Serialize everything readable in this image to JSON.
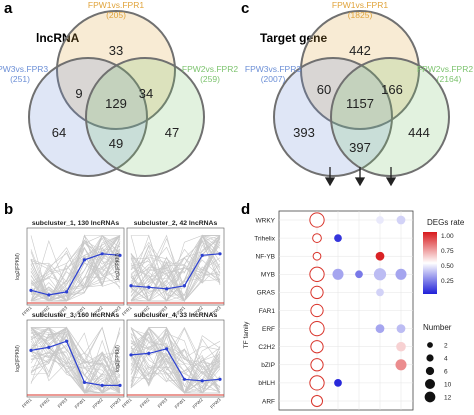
{
  "panels": {
    "a": "a",
    "b": "b",
    "c": "c",
    "d": "d"
  },
  "colors": {
    "yellow": "#E0A33A",
    "blue": "#6C8FD6",
    "green": "#7CC36E",
    "red": "#d9342b",
    "blue_line": "#2b3fd1"
  },
  "venn_a": {
    "title": "lncRNA",
    "sets": [
      {
        "name": "FPW1vs.FPR1",
        "count": "(205)"
      },
      {
        "name": "FPW3vs.FPR3",
        "count": "(251)"
      },
      {
        "name": "FPW2vs.FPR2",
        "count": "(259)"
      }
    ],
    "regions": {
      "top": "33",
      "left": "64",
      "right": "47",
      "top_left": "9",
      "top_right": "34",
      "bottom": "49",
      "center": "129"
    }
  },
  "venn_c": {
    "title": "Target gene",
    "sets": [
      {
        "name": "FPW1vs.FPR1",
        "count": "(1825)"
      },
      {
        "name": "FPW3vs.FPR3",
        "count": "(2007)"
      },
      {
        "name": "FPW2vs.FPR2",
        "count": "(2164)"
      }
    ],
    "regions": {
      "top": "442",
      "left": "393",
      "right": "444",
      "top_left": "60",
      "top_right": "166",
      "bottom": "397",
      "center": "1157"
    }
  },
  "subclusters": [
    {
      "title": "subcluster_1, 130 lncRNAs",
      "ylabel": "log2(FPKM)",
      "values": [
        0.35,
        0.2,
        0.3,
        1.35,
        1.55,
        1.5
      ]
    },
    {
      "title": "subcluster_2, 42 lncRNAs",
      "ylabel": "log2(FPKM)",
      "values": [
        0.5,
        0.45,
        0.4,
        0.5,
        1.5,
        1.55
      ]
    },
    {
      "title": "subcluster_3, 160 lncRNAs",
      "ylabel": "log2(FPKM)",
      "values": [
        1.4,
        1.5,
        1.7,
        0.35,
        0.25,
        0.25
      ]
    },
    {
      "title": "subcluster_4, 33 lncRNAs",
      "ylabel": "log2(FPKM)",
      "values": [
        1.25,
        1.3,
        1.45,
        0.45,
        0.4,
        0.45
      ]
    }
  ],
  "sample_labels": [
    "FPR1",
    "FPR2",
    "FPR3",
    "FPW1",
    "FPW2",
    "FPW3"
  ],
  "chart_data": {
    "type": "scatter",
    "title": "",
    "ylabel": "TF family",
    "categories": [
      "WRKY",
      "Trihelix",
      "NF-YB",
      "MYB",
      "GRAS",
      "FAR1",
      "ERF",
      "C2H2",
      "bZIP",
      "bHLH",
      "ARF"
    ],
    "columns": 5,
    "points": [
      {
        "tf": "WRKY",
        "col": 1,
        "number": 12,
        "rate": 0.5
      },
      {
        "tf": "WRKY",
        "col": 4,
        "number": 2,
        "rate": 0.45
      },
      {
        "tf": "WRKY",
        "col": 5,
        "number": 3,
        "rate": 0.4
      },
      {
        "tf": "Trihelix",
        "col": 1,
        "number": 3,
        "rate": 0.5
      },
      {
        "tf": "Trihelix",
        "col": 2,
        "number": 2,
        "rate": 0.05
      },
      {
        "tf": "NF-YB",
        "col": 1,
        "number": 2,
        "rate": 0.5
      },
      {
        "tf": "NF-YB",
        "col": 4,
        "number": 3,
        "rate": 0.98
      },
      {
        "tf": "MYB",
        "col": 1,
        "number": 12,
        "rate": 0.5
      },
      {
        "tf": "MYB",
        "col": 2,
        "number": 6,
        "rate": 0.3
      },
      {
        "tf": "MYB",
        "col": 3,
        "number": 2,
        "rate": 0.2
      },
      {
        "tf": "MYB",
        "col": 4,
        "number": 8,
        "rate": 0.35
      },
      {
        "tf": "MYB",
        "col": 5,
        "number": 6,
        "rate": 0.3
      },
      {
        "tf": "GRAS",
        "col": 1,
        "number": 8,
        "rate": 0.5
      },
      {
        "tf": "GRAS",
        "col": 4,
        "number": 2,
        "rate": 0.4
      },
      {
        "tf": "FAR1",
        "col": 1,
        "number": 8,
        "rate": 0.5
      },
      {
        "tf": "ERF",
        "col": 1,
        "number": 12,
        "rate": 0.5
      },
      {
        "tf": "ERF",
        "col": 4,
        "number": 3,
        "rate": 0.3
      },
      {
        "tf": "ERF",
        "col": 5,
        "number": 3,
        "rate": 0.35
      },
      {
        "tf": "C2H2",
        "col": 1,
        "number": 8,
        "rate": 0.5
      },
      {
        "tf": "C2H2",
        "col": 5,
        "number": 4,
        "rate": 0.6
      },
      {
        "tf": "bZIP",
        "col": 1,
        "number": 8,
        "rate": 0.5
      },
      {
        "tf": "bZIP",
        "col": 5,
        "number": 6,
        "rate": 0.75
      },
      {
        "tf": "bHLH",
        "col": 1,
        "number": 12,
        "rate": 0.5
      },
      {
        "tf": "bHLH",
        "col": 2,
        "number": 2,
        "rate": 0.02
      },
      {
        "tf": "ARF",
        "col": 1,
        "number": 6,
        "rate": 0.5
      }
    ],
    "color_legend": {
      "title": "DEGs rate",
      "ticks": [
        "1.00",
        "0.75",
        "0.50",
        "0.25"
      ]
    },
    "size_legend": {
      "title": "Number",
      "values": [
        "2",
        "4",
        "6",
        "10",
        "12"
      ]
    }
  }
}
